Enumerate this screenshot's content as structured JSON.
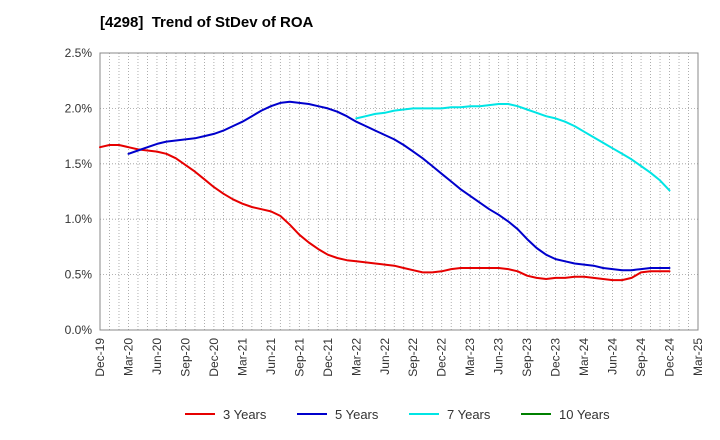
{
  "chart_data": {
    "type": "line",
    "title": "[4298]  Trend of StDev of ROA",
    "xlabel": "",
    "ylabel": "",
    "x_ticks": [
      "Dec-19",
      "Mar-20",
      "Jun-20",
      "Sep-20",
      "Dec-20",
      "Mar-21",
      "Jun-21",
      "Sep-21",
      "Dec-21",
      "Mar-22",
      "Jun-22",
      "Sep-22",
      "Dec-22",
      "Mar-23",
      "Jun-23",
      "Sep-23",
      "Dec-23",
      "Mar-24",
      "Jun-24",
      "Sep-24",
      "Dec-24",
      "Mar-25"
    ],
    "y_ticks": [
      "0.0%",
      "0.5%",
      "1.0%",
      "1.5%",
      "2.0%",
      "2.5%"
    ],
    "ylim": [
      0,
      2.5
    ],
    "y_unit": "%",
    "grid": true,
    "legend_position": "bottom",
    "series": [
      {
        "name": "3 Years",
        "color": "#e60000",
        "points": [
          [
            "Dec-19",
            1.65
          ],
          [
            "Jan-20",
            1.67
          ],
          [
            "Feb-20",
            1.67
          ],
          [
            "Mar-20",
            1.65
          ],
          [
            "Apr-20",
            1.63
          ],
          [
            "May-20",
            1.62
          ],
          [
            "Jun-20",
            1.61
          ],
          [
            "Jul-20",
            1.59
          ],
          [
            "Aug-20",
            1.55
          ],
          [
            "Sep-20",
            1.49
          ],
          [
            "Oct-20",
            1.43
          ],
          [
            "Nov-20",
            1.36
          ],
          [
            "Dec-20",
            1.29
          ],
          [
            "Jan-21",
            1.23
          ],
          [
            "Feb-21",
            1.18
          ],
          [
            "Mar-21",
            1.14
          ],
          [
            "Apr-21",
            1.11
          ],
          [
            "May-21",
            1.09
          ],
          [
            "Jun-21",
            1.07
          ],
          [
            "Jul-21",
            1.03
          ],
          [
            "Aug-21",
            0.95
          ],
          [
            "Sep-21",
            0.86
          ],
          [
            "Oct-21",
            0.79
          ],
          [
            "Nov-21",
            0.73
          ],
          [
            "Dec-21",
            0.68
          ],
          [
            "Jan-22",
            0.65
          ],
          [
            "Feb-22",
            0.63
          ],
          [
            "Mar-22",
            0.62
          ],
          [
            "Apr-22",
            0.61
          ],
          [
            "May-22",
            0.6
          ],
          [
            "Jun-22",
            0.59
          ],
          [
            "Jul-22",
            0.58
          ],
          [
            "Aug-22",
            0.56
          ],
          [
            "Sep-22",
            0.54
          ],
          [
            "Oct-22",
            0.52
          ],
          [
            "Nov-22",
            0.52
          ],
          [
            "Dec-22",
            0.53
          ],
          [
            "Jan-23",
            0.55
          ],
          [
            "Feb-23",
            0.56
          ],
          [
            "Mar-23",
            0.56
          ],
          [
            "Apr-23",
            0.56
          ],
          [
            "May-23",
            0.56
          ],
          [
            "Jun-23",
            0.56
          ],
          [
            "Jul-23",
            0.55
          ],
          [
            "Aug-23",
            0.53
          ],
          [
            "Sep-23",
            0.49
          ],
          [
            "Oct-23",
            0.47
          ],
          [
            "Nov-23",
            0.46
          ],
          [
            "Dec-23",
            0.47
          ],
          [
            "Jan-24",
            0.47
          ],
          [
            "Feb-24",
            0.48
          ],
          [
            "Mar-24",
            0.48
          ],
          [
            "Apr-24",
            0.47
          ],
          [
            "May-24",
            0.46
          ],
          [
            "Jun-24",
            0.45
          ],
          [
            "Jul-24",
            0.45
          ],
          [
            "Aug-24",
            0.47
          ],
          [
            "Sep-24",
            0.52
          ],
          [
            "Oct-24",
            0.53
          ],
          [
            "Nov-24",
            0.53
          ],
          [
            "Dec-24",
            0.53
          ]
        ]
      },
      {
        "name": "5 Years",
        "color": "#0000cc",
        "points": [
          [
            "Mar-20",
            1.59
          ],
          [
            "Apr-20",
            1.62
          ],
          [
            "May-20",
            1.65
          ],
          [
            "Jun-20",
            1.68
          ],
          [
            "Jul-20",
            1.7
          ],
          [
            "Aug-20",
            1.71
          ],
          [
            "Sep-20",
            1.72
          ],
          [
            "Oct-20",
            1.73
          ],
          [
            "Nov-20",
            1.75
          ],
          [
            "Dec-20",
            1.77
          ],
          [
            "Jan-21",
            1.8
          ],
          [
            "Feb-21",
            1.84
          ],
          [
            "Mar-21",
            1.88
          ],
          [
            "Apr-21",
            1.93
          ],
          [
            "May-21",
            1.98
          ],
          [
            "Jun-21",
            2.02
          ],
          [
            "Jul-21",
            2.05
          ],
          [
            "Aug-21",
            2.06
          ],
          [
            "Sep-21",
            2.05
          ],
          [
            "Oct-21",
            2.04
          ],
          [
            "Nov-21",
            2.02
          ],
          [
            "Dec-21",
            2.0
          ],
          [
            "Jan-22",
            1.97
          ],
          [
            "Feb-22",
            1.93
          ],
          [
            "Mar-22",
            1.88
          ],
          [
            "Apr-22",
            1.84
          ],
          [
            "May-22",
            1.8
          ],
          [
            "Jun-22",
            1.76
          ],
          [
            "Jul-22",
            1.72
          ],
          [
            "Aug-22",
            1.67
          ],
          [
            "Sep-22",
            1.61
          ],
          [
            "Oct-22",
            1.55
          ],
          [
            "Nov-22",
            1.48
          ],
          [
            "Dec-22",
            1.41
          ],
          [
            "Jan-23",
            1.34
          ],
          [
            "Feb-23",
            1.27
          ],
          [
            "Mar-23",
            1.21
          ],
          [
            "Apr-23",
            1.15
          ],
          [
            "May-23",
            1.09
          ],
          [
            "Jun-23",
            1.04
          ],
          [
            "Jul-23",
            0.98
          ],
          [
            "Aug-23",
            0.91
          ],
          [
            "Sep-23",
            0.82
          ],
          [
            "Oct-23",
            0.74
          ],
          [
            "Nov-23",
            0.68
          ],
          [
            "Dec-23",
            0.64
          ],
          [
            "Jan-24",
            0.62
          ],
          [
            "Feb-24",
            0.6
          ],
          [
            "Mar-24",
            0.59
          ],
          [
            "Apr-24",
            0.58
          ],
          [
            "May-24",
            0.56
          ],
          [
            "Jun-24",
            0.55
          ],
          [
            "Jul-24",
            0.54
          ],
          [
            "Aug-24",
            0.54
          ],
          [
            "Sep-24",
            0.55
          ],
          [
            "Oct-24",
            0.56
          ],
          [
            "Nov-24",
            0.56
          ],
          [
            "Dec-24",
            0.56
          ]
        ]
      },
      {
        "name": "7 Years",
        "color": "#00e5e5",
        "points": [
          [
            "Mar-22",
            1.91
          ],
          [
            "Apr-22",
            1.93
          ],
          [
            "May-22",
            1.95
          ],
          [
            "Jun-22",
            1.96
          ],
          [
            "Jul-22",
            1.98
          ],
          [
            "Aug-22",
            1.99
          ],
          [
            "Sep-22",
            2.0
          ],
          [
            "Oct-22",
            2.0
          ],
          [
            "Nov-22",
            2.0
          ],
          [
            "Dec-22",
            2.0
          ],
          [
            "Jan-23",
            2.01
          ],
          [
            "Feb-23",
            2.01
          ],
          [
            "Mar-23",
            2.02
          ],
          [
            "Apr-23",
            2.02
          ],
          [
            "May-23",
            2.03
          ],
          [
            "Jun-23",
            2.04
          ],
          [
            "Jul-23",
            2.04
          ],
          [
            "Aug-23",
            2.02
          ],
          [
            "Sep-23",
            1.99
          ],
          [
            "Oct-23",
            1.96
          ],
          [
            "Nov-23",
            1.93
          ],
          [
            "Dec-23",
            1.91
          ],
          [
            "Jan-24",
            1.88
          ],
          [
            "Feb-24",
            1.84
          ],
          [
            "Mar-24",
            1.79
          ],
          [
            "Apr-24",
            1.74
          ],
          [
            "May-24",
            1.69
          ],
          [
            "Jun-24",
            1.64
          ],
          [
            "Jul-24",
            1.59
          ],
          [
            "Aug-24",
            1.54
          ],
          [
            "Sep-24",
            1.48
          ],
          [
            "Oct-24",
            1.42
          ],
          [
            "Nov-24",
            1.35
          ],
          [
            "Dec-24",
            1.26
          ]
        ]
      },
      {
        "name": "10 Years",
        "color": "#008000",
        "points": []
      }
    ]
  }
}
